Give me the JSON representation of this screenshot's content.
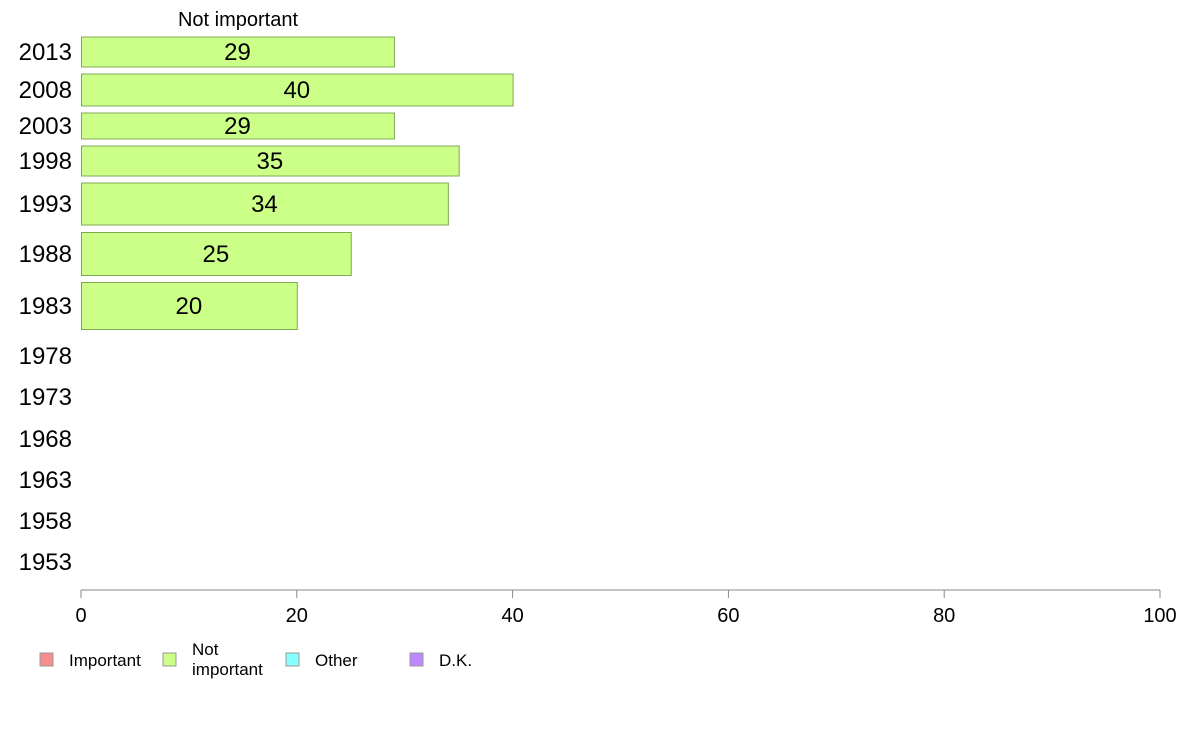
{
  "chart_data": {
    "type": "bar",
    "orientation": "horizontal",
    "column_title": "Not important",
    "categories": [
      "2013",
      "2008",
      "2003",
      "1998",
      "1993",
      "1988",
      "1983",
      "1978",
      "1973",
      "1968",
      "1963",
      "1958",
      "1953"
    ],
    "series": [
      {
        "name": "Not important",
        "color": "#ccff88",
        "values": [
          29,
          40,
          29,
          35,
          34,
          25,
          20,
          null,
          null,
          null,
          null,
          null,
          null
        ]
      }
    ],
    "xlim": [
      0,
      100
    ],
    "xticks": [
      0,
      20,
      40,
      60,
      80,
      100
    ],
    "grid": false,
    "legend": {
      "placement": "bottom-left",
      "items": [
        {
          "label": "Important",
          "color": "#f78d8d"
        },
        {
          "label": "Not important",
          "color": "#ccff88"
        },
        {
          "label": "Other",
          "color": "#88ffff"
        },
        {
          "label": "D.K.",
          "color": "#bb88ff"
        }
      ]
    }
  }
}
